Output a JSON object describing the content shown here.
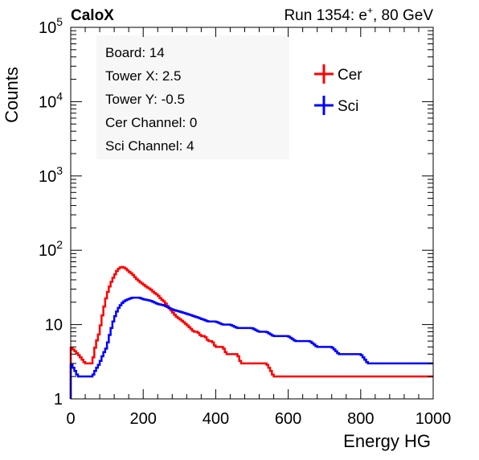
{
  "header": {
    "brand": "CaloX",
    "run_text": "Run 1354: e",
    "run_sup": "+",
    "run_tail": ", 80 GeV"
  },
  "info_box": [
    "Board: 14",
    "Tower X: 2.5",
    "Tower Y: -0.5",
    "Cer Channel: 0",
    "Sci Channel: 4"
  ],
  "chart_data": {
    "type": "line",
    "xlabel": "Energy HG",
    "ylabel": "Counts",
    "xlim": [
      0,
      1000
    ],
    "ylim": [
      1,
      100000
    ],
    "ylog": true,
    "grid": false,
    "legend_position": "top-right",
    "x_ticks": [
      "0",
      "200",
      "400",
      "600",
      "800",
      "1000"
    ],
    "y_ticks": [
      {
        "base": "1",
        "exp": ""
      },
      {
        "base": "10",
        "exp": ""
      },
      {
        "base": "10",
        "exp": "2"
      },
      {
        "base": "10",
        "exp": "3"
      },
      {
        "base": "10",
        "exp": "4"
      },
      {
        "base": "10",
        "exp": "5"
      }
    ],
    "bin_width": 5,
    "series": [
      {
        "name": "Cer",
        "color": "#ff0000",
        "x": [
          0,
          20,
          40,
          60,
          80,
          90,
          100,
          110,
          120,
          130,
          140,
          150,
          160,
          170,
          180,
          190,
          200,
          210,
          220,
          230,
          240,
          250,
          260,
          270,
          280,
          290,
          300,
          310,
          320,
          330,
          340,
          350,
          360,
          370,
          380,
          390,
          400,
          410,
          420,
          430,
          440,
          450,
          460,
          470,
          480,
          500,
          520,
          540,
          560,
          580,
          600,
          620,
          640,
          660,
          680,
          700
        ],
        "y": [
          5,
          4,
          3,
          3,
          8,
          15,
          25,
          35,
          45,
          55,
          60,
          58,
          52,
          48,
          42,
          38,
          35,
          32,
          30,
          27,
          25,
          22,
          20,
          17,
          15,
          13,
          12,
          11,
          10,
          9,
          8,
          8,
          7,
          7,
          6,
          6,
          5,
          5,
          5,
          4,
          4,
          4,
          4,
          3,
          3,
          3,
          3,
          3,
          2,
          2,
          2,
          2,
          2,
          2,
          2,
          2
        ]
      },
      {
        "name": "Sci",
        "color": "#0000ff",
        "x": [
          0,
          20,
          40,
          60,
          80,
          100,
          110,
          120,
          130,
          140,
          150,
          160,
          170,
          180,
          190,
          200,
          220,
          240,
          260,
          280,
          300,
          320,
          340,
          360,
          380,
          400,
          420,
          440,
          460,
          480,
          500,
          520,
          540,
          560,
          580,
          600,
          620,
          640,
          660,
          680,
          700,
          720,
          740,
          760,
          780,
          800,
          820,
          840,
          860,
          880,
          900,
          920,
          940,
          960,
          980,
          995
        ],
        "y": [
          3,
          2,
          2,
          2,
          3,
          5,
          8,
          12,
          16,
          19,
          21,
          22,
          23,
          23,
          23,
          22,
          21,
          19,
          18,
          16,
          15,
          14,
          13,
          12,
          11,
          11,
          10,
          10,
          9,
          9,
          9,
          8,
          8,
          7,
          7,
          7,
          6,
          6,
          6,
          5,
          5,
          5,
          4,
          4,
          4,
          4,
          3,
          3,
          3,
          3,
          3,
          3,
          3,
          3,
          3,
          3
        ]
      }
    ]
  }
}
